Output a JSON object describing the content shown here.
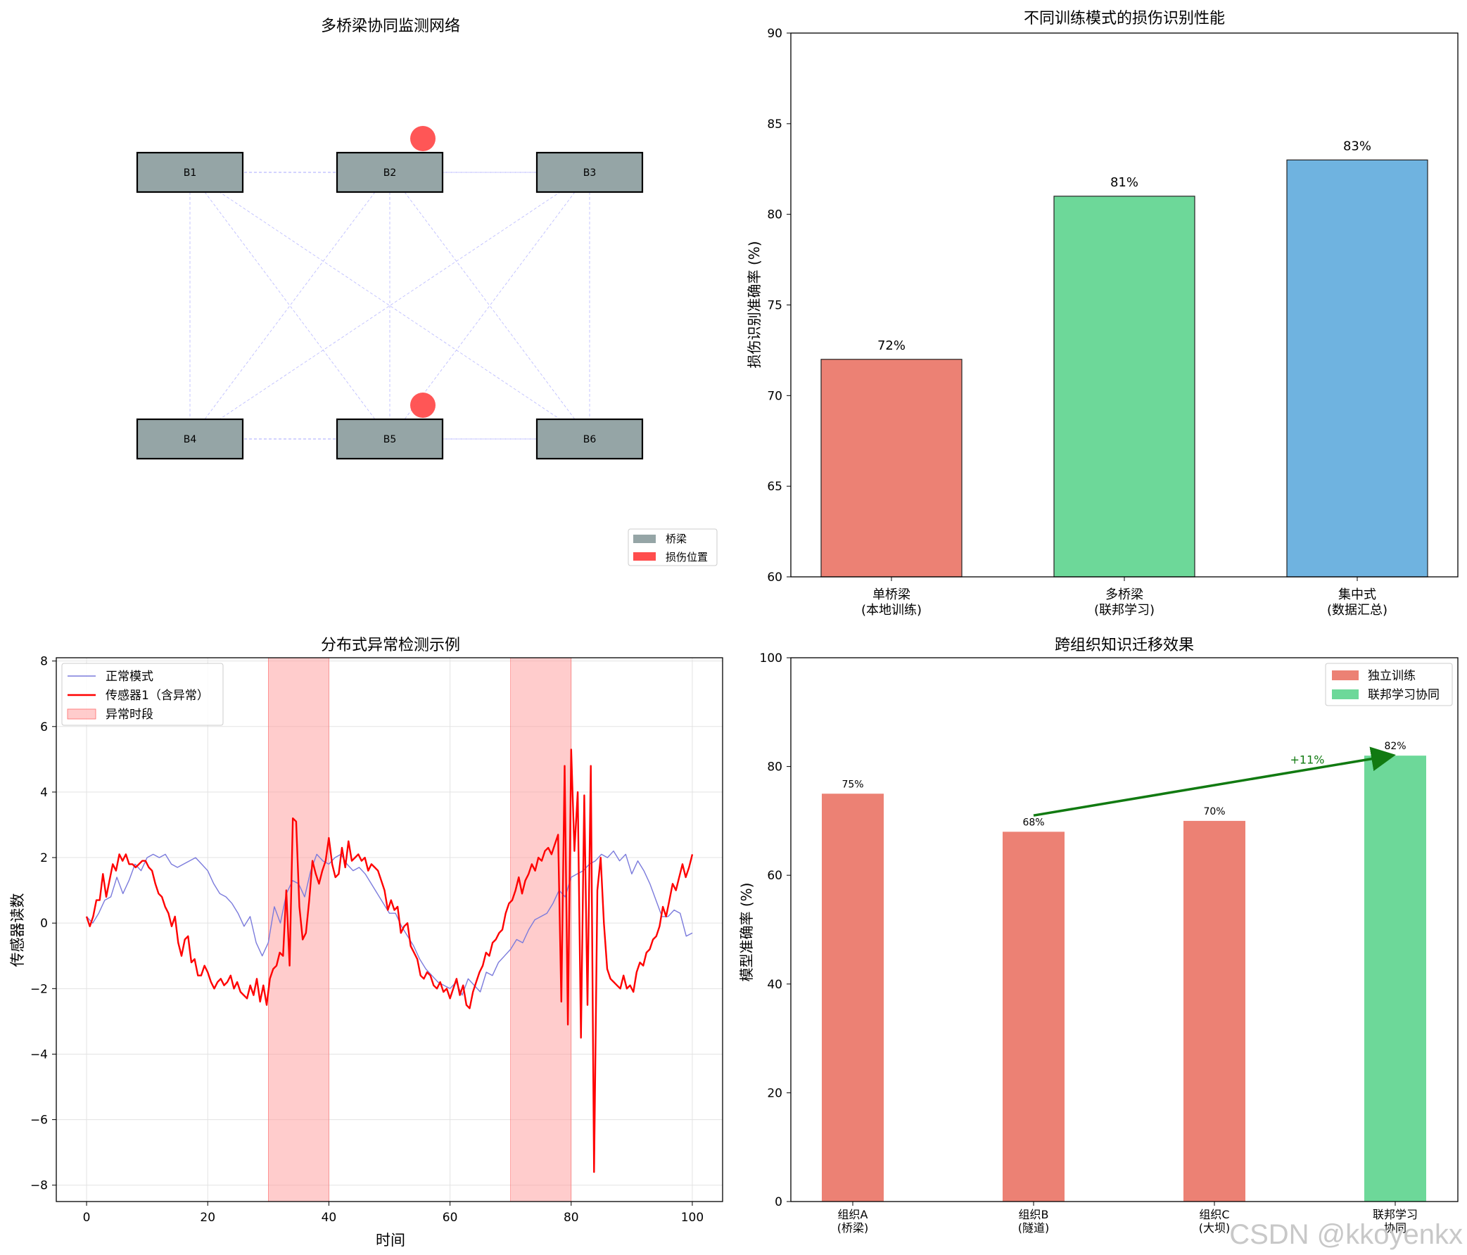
{
  "watermark": "CSDN @kkoyenkx",
  "chart_data": [
    {
      "type": "diagram",
      "title": "多桥梁协同监测网络",
      "nodes": [
        "B1",
        "B2",
        "B3",
        "B4",
        "B5",
        "B6"
      ],
      "damaged": [
        "B2",
        "B5"
      ],
      "edges": "all node pairs connected (dashed)",
      "legend": [
        "桥梁",
        "损伤位置"
      ],
      "legend_position": "lower-right",
      "colors": {
        "bridge": "#95a5a6",
        "damage": "#ff4d4d",
        "edge": "#7b7bff"
      }
    },
    {
      "type": "bar",
      "title": "不同训练模式的损伤识别性能",
      "categories": [
        "单桥梁\n(本地训练)",
        "多桥梁\n(联邦学习)",
        "集中式\n(数据汇总)"
      ],
      "values": [
        72,
        81,
        83
      ],
      "value_labels": [
        "72%",
        "81%",
        "83%"
      ],
      "colors": [
        "#ec8174",
        "#6dd899",
        "#6fb3e0"
      ],
      "ylabel": "损伤识别准确率 (%)",
      "ylim": [
        60,
        90
      ],
      "yticks": [
        60,
        65,
        70,
        75,
        80,
        85,
        90
      ]
    },
    {
      "type": "line",
      "title": "分布式异常检测示例",
      "xlabel": "时间",
      "ylabel": "传感器读数",
      "xlim": [
        -5,
        105
      ],
      "ylim": [
        -8.5,
        8.1
      ],
      "xticks": [
        0,
        20,
        40,
        60,
        80,
        100
      ],
      "yticks": [
        -8,
        -6,
        -4,
        -2,
        0,
        2,
        4,
        6,
        8
      ],
      "grid": true,
      "legend": [
        "正常模式",
        "传感器1（含异常）",
        "异常时段"
      ],
      "legend_position": "top-left",
      "anomaly_spans": [
        [
          30,
          40
        ],
        [
          70,
          80
        ]
      ],
      "series": [
        {
          "name": "正常模式",
          "color": "#7b7bdc",
          "formula": "2*sin(x/(100/3)*2*pi)+noise",
          "values": [
            0.2,
            0.0,
            0.3,
            0.7,
            0.8,
            1.4,
            0.9,
            1.3,
            1.8,
            1.6,
            2.0,
            2.1,
            2.0,
            2.1,
            1.8,
            1.7,
            1.8,
            1.9,
            2.0,
            1.8,
            1.6,
            1.2,
            0.9,
            0.8,
            0.6,
            0.3,
            -0.1,
            0.2,
            -0.6,
            -1.0,
            -0.6,
            0.5,
            0.0,
            0.9,
            1.3,
            1.2,
            0.8,
            1.6,
            2.1,
            1.9,
            1.8,
            2.0,
            2.1,
            1.8,
            1.6,
            1.7,
            1.5,
            1.2,
            0.9,
            0.6,
            0.3,
            0.3,
            -0.1,
            -0.4,
            -0.7,
            -1.1,
            -1.4,
            -1.6,
            -1.8,
            -1.9,
            -2.0,
            -1.8,
            -2.2,
            -1.7,
            -1.9,
            -2.1,
            -1.5,
            -1.6,
            -1.2,
            -1.0,
            -0.8,
            -0.5,
            -0.6,
            -0.2,
            0.1,
            0.2,
            0.3,
            0.6,
            1.0,
            0.8,
            1.4,
            1.5,
            1.6,
            1.8,
            1.9,
            2.1,
            2.0,
            2.2,
            1.9,
            2.1,
            1.5,
            1.9,
            1.6,
            1.2,
            0.7,
            0.2,
            0.2,
            0.4,
            0.3,
            -0.4,
            -0.3
          ]
        },
        {
          "name": "传感器1（含异常）",
          "color": "#ff0000",
          "values": [
            0.2,
            -0.1,
            0.2,
            0.7,
            0.7,
            1.5,
            0.8,
            1.3,
            1.8,
            1.6,
            2.1,
            1.9,
            2.1,
            1.8,
            1.8,
            1.7,
            1.8,
            1.9,
            1.9,
            1.7,
            1.6,
            1.2,
            0.9,
            0.8,
            0.5,
            0.3,
            -0.1,
            0.2,
            -0.6,
            -1.0,
            -0.5,
            -0.4,
            -1.2,
            -1.1,
            -1.6,
            -1.6,
            -1.3,
            -1.5,
            -1.8,
            -2.0,
            -1.8,
            -1.7,
            -1.9,
            -1.8,
            -1.6,
            -2.0,
            -1.8,
            -2.1,
            -2.2,
            -2.3,
            -1.9,
            -2.2,
            -1.7,
            -2.4,
            -1.9,
            -2.5,
            -1.7,
            -1.4,
            -1.3,
            -0.9,
            -1.0,
            1.0,
            -1.3,
            3.2,
            3.1,
            0.5,
            -0.5,
            -0.3,
            0.7,
            1.9,
            1.5,
            1.2,
            1.6,
            1.9,
            2.6,
            1.8,
            1.4,
            1.5,
            2.3,
            1.7,
            2.5,
            1.9,
            2.0,
            2.1,
            1.9,
            2.0,
            1.6,
            1.8,
            1.7,
            1.6,
            1.3,
            1.0,
            0.4,
            0.7,
            0.4,
            0.5,
            -0.3,
            -0.1,
            0.0,
            -0.7,
            -0.9,
            -1.1,
            -1.6,
            -1.7,
            -1.5,
            -1.6,
            -1.9,
            -2.0,
            -1.8,
            -2.1,
            -2.0,
            -2.3,
            -2.0,
            -1.7,
            -2.2,
            -1.9,
            -2.5,
            -2.6,
            -2.1,
            -1.8,
            -1.5,
            -1.3,
            -0.9,
            -1.0,
            -0.6,
            -0.5,
            -0.3,
            -0.2,
            0.3,
            0.6,
            0.7,
            1.0,
            1.4,
            0.9,
            1.3,
            1.5,
            1.8,
            1.6,
            2.0,
            1.9,
            2.2,
            2.3,
            2.1,
            2.4,
            2.7,
            -2.4,
            4.8,
            -3.1,
            5.3,
            2.2,
            4.0,
            -3.5,
            3.9,
            -2.5,
            4.8,
            -7.6,
            1.0,
            2.0,
            0.0,
            -1.4,
            -1.7,
            -1.8,
            -1.9,
            -2.0,
            -1.6,
            -2.0,
            -1.9,
            -2.1,
            -1.5,
            -1.2,
            -1.3,
            -0.9,
            -0.8,
            -0.5,
            -0.4,
            -0.1,
            0.5,
            0.2,
            0.7,
            1.2,
            1.0,
            1.4,
            1.8,
            1.4,
            1.7,
            2.1
          ]
        }
      ]
    },
    {
      "type": "bar",
      "title": "跨组织知识迁移效果",
      "categories": [
        "组织A\n(桥梁)",
        "组织B\n(隧道)",
        "组织C\n(大坝)",
        "联邦学习\n协同"
      ],
      "values": [
        75,
        68,
        70,
        82
      ],
      "value_labels": [
        "75%",
        "68%",
        "70%",
        "82%"
      ],
      "series_names": [
        "独立训练",
        "联邦学习协同"
      ],
      "colors": {
        "独立训练": "#ec8174",
        "联邦学习协同": "#6dd899",
        "arrow": "#117a11"
      },
      "ylabel": "模型准确率 (%)",
      "ylim": [
        0,
        100
      ],
      "yticks": [
        0,
        20,
        40,
        60,
        80,
        100
      ],
      "legend_position": "top-right",
      "annotation": {
        "text": "+11%",
        "from": "组织B",
        "to": "联邦学习协同"
      }
    }
  ]
}
